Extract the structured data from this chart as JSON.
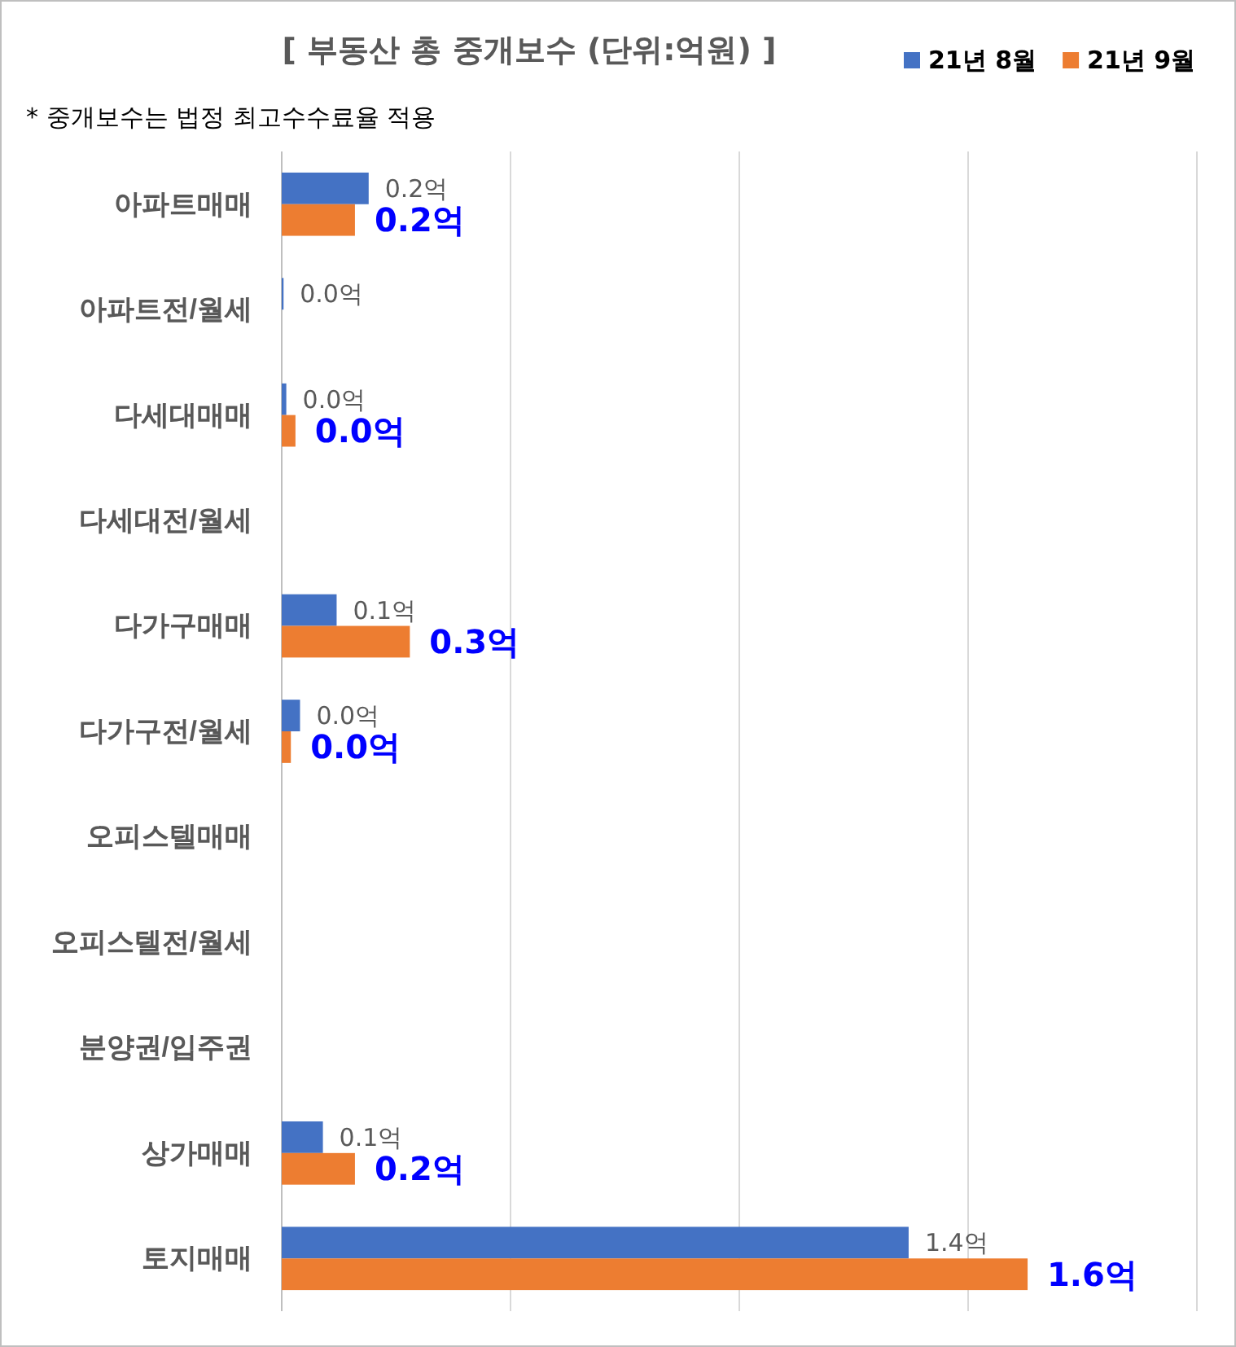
{
  "chart_data": {
    "type": "bar",
    "orientation": "horizontal",
    "title": "[ 부동산 총 중개보수 (단위:억원) ]",
    "annotations": [
      "* 중개보수는 법정 최고수수료율 적용"
    ],
    "categories": [
      "아파트매매",
      "아파트전/월세",
      "다세대매매",
      "다세대전/월세",
      "다가구매매",
      "다가구전/월세",
      "오피스텔매매",
      "오피스텔전/월세",
      "분양권/입주권",
      "상가매매",
      "토지매매"
    ],
    "series": [
      {
        "name": "21년 8월",
        "color": "#4472c4",
        "values": [
          0.19,
          0.004,
          0.01,
          null,
          0.12,
          0.04,
          null,
          null,
          null,
          0.09,
          1.37
        ],
        "value_labels": [
          "0.2억",
          "0.0억",
          "0.0억",
          null,
          "0.1억",
          "0.0억",
          null,
          null,
          null,
          "0.1억",
          "1.4억"
        ]
      },
      {
        "name": "21년 9월",
        "color": "#ed7d31",
        "values": [
          0.16,
          null,
          0.03,
          null,
          0.28,
          0.02,
          null,
          null,
          null,
          0.16,
          1.63
        ],
        "value_labels": [
          "0.2억",
          null,
          "0.0억",
          null,
          "0.3억",
          "0.0억",
          null,
          null,
          null,
          "0.2억",
          "1.6억"
        ]
      }
    ],
    "xlim": [
      0,
      2
    ],
    "xticks": [
      {
        "value": 0,
        "label": null
      },
      {
        "value": 0.5,
        "label": null
      },
      {
        "value": 1,
        "label": null
      },
      {
        "value": 1.5,
        "label": null
      },
      {
        "value": 2,
        "label": null
      }
    ],
    "tick_labels": "y",
    "grid": "x",
    "legend": "top right"
  }
}
